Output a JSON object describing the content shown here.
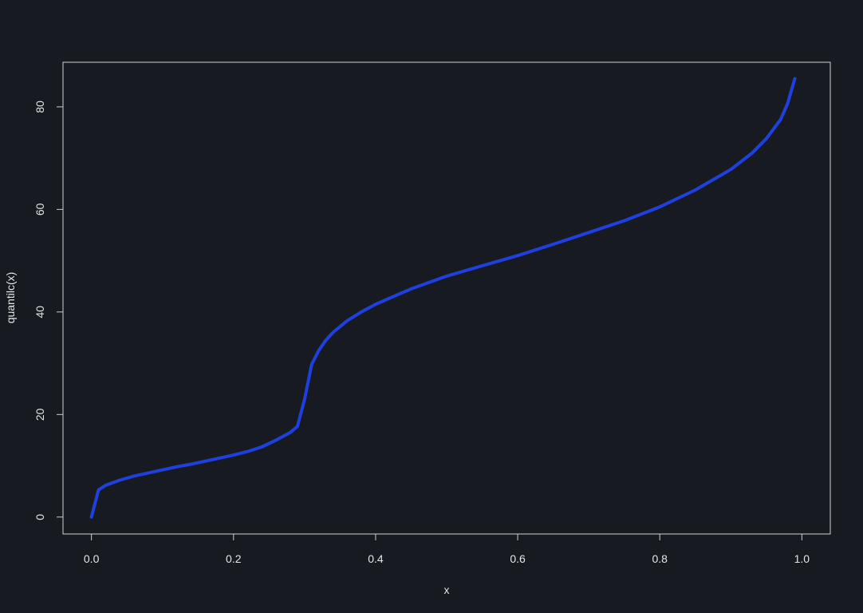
{
  "colors": {
    "background": "#171b21",
    "axis": "#cfcfcf",
    "line": "#1f3fe0",
    "text": "#e6e6e6"
  },
  "chart_data": {
    "type": "line",
    "title": "",
    "xlabel": "x",
    "ylabel": "quantilc(x)",
    "xlim": [
      -0.04,
      1.04
    ],
    "ylim": [
      -3.3,
      88.7
    ],
    "x_ticks": [
      0.0,
      0.2,
      0.4,
      0.6,
      0.8,
      1.0
    ],
    "x_tick_labels": [
      "0.0",
      "0.2",
      "0.4",
      "0.6",
      "0.8",
      "1.0"
    ],
    "y_ticks": [
      0,
      20,
      40,
      60,
      80
    ],
    "y_tick_labels": [
      "0",
      "20",
      "40",
      "60",
      "80"
    ],
    "grid": false,
    "series": [
      {
        "x": [
          0.0,
          0.01,
          0.02,
          0.04,
          0.06,
          0.08,
          0.1,
          0.12,
          0.14,
          0.16,
          0.18,
          0.2,
          0.22,
          0.24,
          0.26,
          0.28,
          0.29,
          0.3,
          0.31,
          0.32,
          0.33,
          0.34,
          0.36,
          0.38,
          0.4,
          0.45,
          0.5,
          0.55,
          0.6,
          0.65,
          0.7,
          0.75,
          0.8,
          0.85,
          0.9,
          0.93,
          0.95,
          0.97,
          0.98,
          0.99
        ],
        "y": [
          0.0,
          5.3,
          6.2,
          7.2,
          8.0,
          8.6,
          9.2,
          9.8,
          10.3,
          10.9,
          11.5,
          12.1,
          12.8,
          13.7,
          15.0,
          16.5,
          17.7,
          23.0,
          29.8,
          32.5,
          34.5,
          36.0,
          38.3,
          40.0,
          41.5,
          44.5,
          47.0,
          49.0,
          51.0,
          53.2,
          55.5,
          57.8,
          60.5,
          63.8,
          67.8,
          71.0,
          73.8,
          77.5,
          80.7,
          85.5
        ]
      }
    ]
  }
}
